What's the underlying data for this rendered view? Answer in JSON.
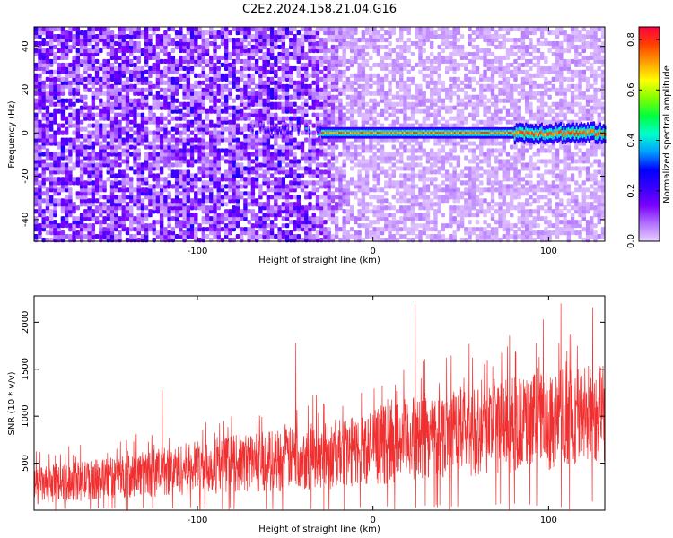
{
  "figure": {
    "title": "C2E2.2024.158.21.04.G16"
  },
  "chart_data": [
    {
      "type": "heatmap",
      "xlabel": "Height of straight line (km)",
      "ylabel": "Frequency (Hz)",
      "xlim": [
        -193,
        132
      ],
      "ylim": [
        -50,
        49
      ],
      "x_ticks": [
        -100,
        0,
        100
      ],
      "x_tick_labels": [
        "-100",
        "0",
        "100"
      ],
      "y_ticks": [
        -40,
        -20,
        0,
        20,
        40
      ],
      "y_tick_labels": [
        "-40",
        "-20",
        "0",
        "20",
        "40"
      ],
      "grid": false,
      "colorbar": {
        "label": "Normalized spectral amplitude",
        "range": [
          0.0,
          0.85
        ],
        "ticks": [
          0.0,
          0.2,
          0.4,
          0.6,
          0.8
        ],
        "tick_labels": [
          "0.0",
          "0.2",
          "0.4",
          "0.6",
          "0.8"
        ],
        "colors": [
          "#e8d0ff",
          "#b070ff",
          "#7a00ff",
          "#3800ff",
          "#0000ff",
          "#00a0ff",
          "#00ffcc",
          "#00ff40",
          "#80ff00",
          "#ffff00",
          "#ffa000",
          "#ff4000",
          "#ff0040"
        ]
      },
      "features": {
        "noise_level_left": 0.15,
        "noise_level_right": 0.04,
        "noise_transition_x": -25,
        "carrier_frequency": 0,
        "carrier_start_x": -30,
        "carrier_amplitude": 0.8,
        "carrier_half_width_hz": 1.5,
        "carrier_wobble_start_x": 80
      }
    },
    {
      "type": "line",
      "xlabel": "Height of straight line (km)",
      "ylabel": "SNR (10 * v/v)",
      "xlim": [
        -193,
        132
      ],
      "ylim": [
        0,
        2280
      ],
      "x_ticks": [
        -100,
        0,
        100
      ],
      "x_tick_labels": [
        "-100",
        "0",
        "100"
      ],
      "y_ticks": [
        500,
        1000,
        1500,
        2000
      ],
      "y_tick_labels": [
        "500",
        "1000",
        "1500",
        "2000"
      ],
      "grid": false,
      "series": [
        {
          "color": "#f03030",
          "trend_x": [
            -193,
            -150,
            -100,
            -50,
            -10,
            20,
            60,
            100,
            132
          ],
          "trend_upper": [
            450,
            560,
            740,
            880,
            1000,
            1200,
            1350,
            1480,
            1600
          ],
          "trend_lower": [
            60,
            120,
            160,
            200,
            240,
            300,
            350,
            420,
            480
          ],
          "peaks": [
            {
              "x": 24,
              "y": 2190
            },
            {
              "x": 107,
              "y": 2200
            },
            {
              "x": 125,
              "y": 2160
            },
            {
              "x": 97,
              "y": 2030
            },
            {
              "x": -44,
              "y": 1780
            },
            {
              "x": -120,
              "y": 1280
            }
          ]
        }
      ]
    }
  ]
}
